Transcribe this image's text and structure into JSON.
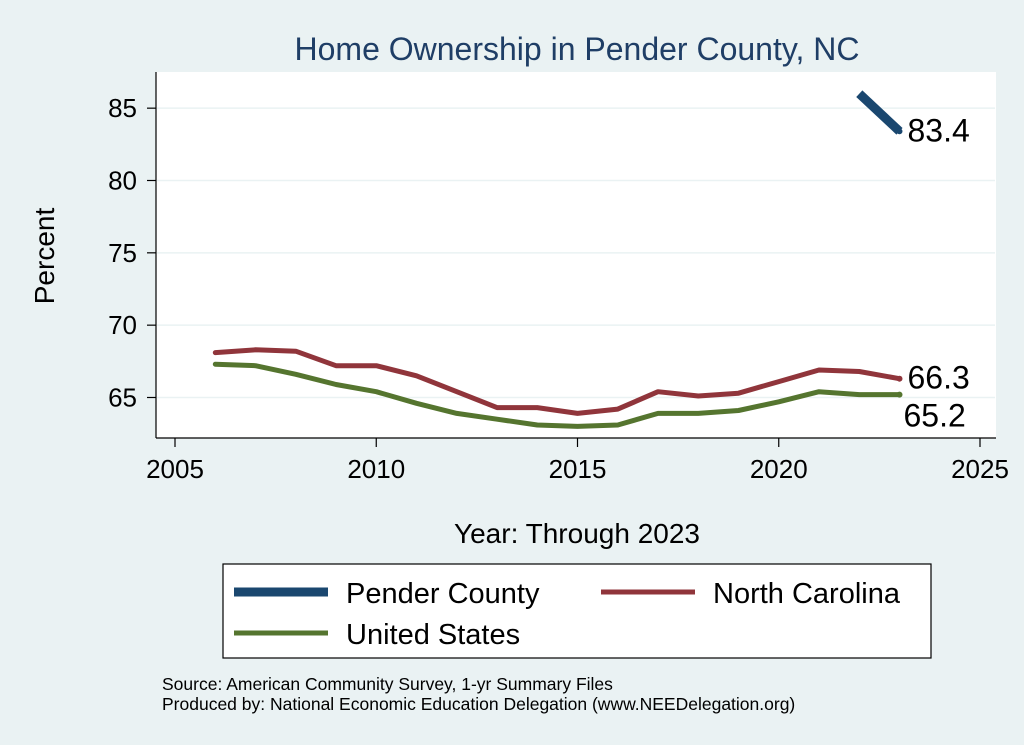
{
  "chart_data": {
    "type": "line",
    "title": "Home Ownership in Pender County, NC",
    "xlabel": "Year: Through 2023",
    "ylabel": "Percent",
    "xlim": [
      2005,
      2025
    ],
    "ylim": [
      62.2,
      87.5
    ],
    "xticks": [
      2005,
      2010,
      2015,
      2020,
      2025
    ],
    "yticks": [
      65,
      70,
      75,
      80,
      85
    ],
    "grid": true,
    "legend_position": "bottom",
    "series": [
      {
        "name": "Pender County",
        "color": "#1a476f",
        "x": [
          2022,
          2023
        ],
        "values": [
          86.0,
          83.4
        ],
        "end_label": "83.4"
      },
      {
        "name": "North Carolina",
        "color": "#90353b",
        "x": [
          2006,
          2007,
          2008,
          2009,
          2010,
          2011,
          2012,
          2013,
          2014,
          2015,
          2016,
          2017,
          2018,
          2019,
          2020,
          2021,
          2022,
          2023
        ],
        "values": [
          68.1,
          68.3,
          68.2,
          67.2,
          67.2,
          66.5,
          65.4,
          64.3,
          64.3,
          63.9,
          64.2,
          65.4,
          65.1,
          65.3,
          66.1,
          66.9,
          66.8,
          66.3
        ],
        "end_label": "66.3"
      },
      {
        "name": "United States",
        "color": "#55752f",
        "x": [
          2006,
          2007,
          2008,
          2009,
          2010,
          2011,
          2012,
          2013,
          2014,
          2015,
          2016,
          2017,
          2018,
          2019,
          2020,
          2021,
          2022,
          2023
        ],
        "values": [
          67.3,
          67.2,
          66.6,
          65.9,
          65.4,
          64.6,
          63.9,
          63.5,
          63.1,
          63.0,
          63.1,
          63.9,
          63.9,
          64.1,
          64.7,
          65.4,
          65.2,
          65.2
        ],
        "end_label": "65.2"
      }
    ]
  },
  "footer": {
    "source": "Source: American Community Survey, 1-yr Summary Files",
    "produced": "Produced by: National Economic Education Delegation (www.NEEDelegation.org)"
  }
}
